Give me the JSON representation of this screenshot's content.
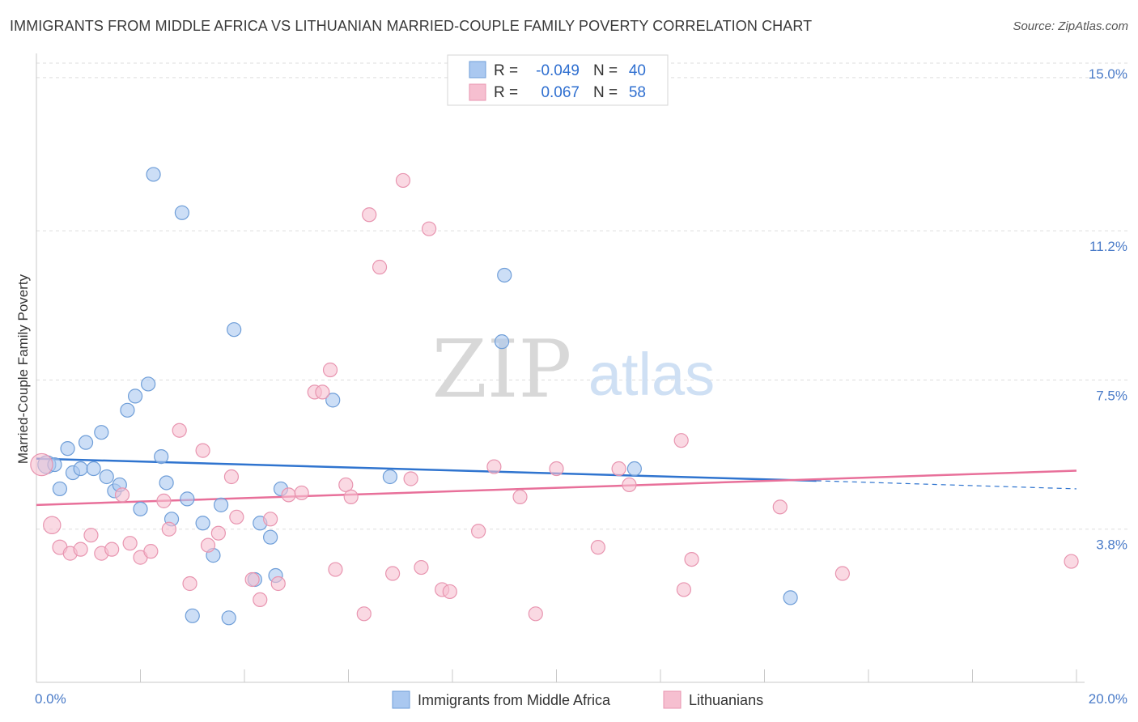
{
  "title": "IMMIGRANTS FROM MIDDLE AFRICA VS LITHUANIAN MARRIED-COUPLE FAMILY POVERTY CORRELATION CHART",
  "source": "Source: ZipAtlas.com",
  "watermark": {
    "zip": "ZIP",
    "atlas": "atlas"
  },
  "colors": {
    "blue_fill": "#aac8f0",
    "blue_stroke": "#6f9ed8",
    "blue_line": "#2f74cf",
    "pink_fill": "#f6bfd0",
    "pink_stroke": "#e895b0",
    "pink_line": "#e8709a",
    "tick_text": "#4a7bc8",
    "grid": "#dddddd"
  },
  "legend": {
    "r_label": "R =",
    "n_label": "N =",
    "rows": [
      {
        "r": "-0.049",
        "n": "40",
        "color": "blue"
      },
      {
        "r": "0.067",
        "n": "58",
        "color": "pink"
      }
    ]
  },
  "bottom_legend": [
    "Immigrants from Middle Africa",
    "Lithuanians"
  ],
  "chart_data": {
    "type": "scatter",
    "title": "IMMIGRANTS FROM MIDDLE AFRICA VS LITHUANIAN MARRIED-COUPLE FAMILY POVERTY CORRELATION CHART",
    "xlabel": "",
    "ylabel": "Married-Couple Family Poverty",
    "xlim": [
      0,
      20
    ],
    "ylim": [
      0,
      15.4
    ],
    "x_tick_labels": [
      "0.0%",
      "20.0%"
    ],
    "y_ticks": [
      3.8,
      7.5,
      11.2,
      15.0
    ],
    "y_tick_labels": [
      "3.8%",
      "7.5%",
      "11.2%",
      "15.0%"
    ],
    "grid": true,
    "legend_position": "top-center",
    "series": [
      {
        "name": "Immigrants from Middle Africa",
        "color": "blue",
        "trend": {
          "x": [
            0,
            15
          ],
          "y": [
            5.55,
            5.0
          ],
          "dashed_to": [
            20,
            4.8
          ]
        },
        "points": [
          [
            0.2,
            5.4,
            1.3
          ],
          [
            0.35,
            5.4,
            1.0
          ],
          [
            0.45,
            4.8,
            1.0
          ],
          [
            0.6,
            5.8,
            1.0
          ],
          [
            0.7,
            5.2,
            1.0
          ],
          [
            0.85,
            5.3,
            1.0
          ],
          [
            0.95,
            5.95,
            1.0
          ],
          [
            1.1,
            5.3,
            1.0
          ],
          [
            1.25,
            6.2,
            1.0
          ],
          [
            1.35,
            5.1,
            1.0
          ],
          [
            1.5,
            4.75,
            1.0
          ],
          [
            1.6,
            4.9,
            1.0
          ],
          [
            1.75,
            6.75,
            1.0
          ],
          [
            1.9,
            7.1,
            1.0
          ],
          [
            2.0,
            4.3,
            1.0
          ],
          [
            2.15,
            7.4,
            1.0
          ],
          [
            2.25,
            12.6,
            1.0
          ],
          [
            2.4,
            5.6,
            1.0
          ],
          [
            2.5,
            4.95,
            1.0
          ],
          [
            2.6,
            4.05,
            1.0
          ],
          [
            2.8,
            11.65,
            1.0
          ],
          [
            2.9,
            4.55,
            1.0
          ],
          [
            3.0,
            1.65,
            1.0
          ],
          [
            3.2,
            3.95,
            1.0
          ],
          [
            3.4,
            3.15,
            1.0
          ],
          [
            3.55,
            4.4,
            1.0
          ],
          [
            3.7,
            1.6,
            1.0
          ],
          [
            3.8,
            8.75,
            1.0
          ],
          [
            4.2,
            2.55,
            1.0
          ],
          [
            4.3,
            3.95,
            1.0
          ],
          [
            4.5,
            3.6,
            1.0
          ],
          [
            4.6,
            2.65,
            1.0
          ],
          [
            4.7,
            4.8,
            1.0
          ],
          [
            5.7,
            7.0,
            1.0
          ],
          [
            6.8,
            5.1,
            1.0
          ],
          [
            9.0,
            10.1,
            1.0
          ],
          [
            8.95,
            8.45,
            1.0
          ],
          [
            11.5,
            5.3,
            1.0
          ],
          [
            14.5,
            2.1,
            1.0
          ]
        ]
      },
      {
        "name": "Lithuanians",
        "color": "pink",
        "trend": {
          "x": [
            0,
            20
          ],
          "y": [
            4.4,
            5.25
          ]
        },
        "points": [
          [
            0.1,
            5.4,
            1.6
          ],
          [
            0.3,
            3.9,
            1.25
          ],
          [
            0.45,
            3.35,
            1.05
          ],
          [
            0.65,
            3.2,
            1.0
          ],
          [
            0.85,
            3.3,
            1.0
          ],
          [
            1.05,
            3.65,
            1.0
          ],
          [
            1.25,
            3.2,
            1.0
          ],
          [
            1.45,
            3.3,
            1.0
          ],
          [
            1.65,
            4.65,
            1.0
          ],
          [
            1.8,
            3.45,
            1.0
          ],
          [
            2.0,
            3.1,
            1.0
          ],
          [
            2.2,
            3.25,
            1.0
          ],
          [
            2.45,
            4.5,
            1.0
          ],
          [
            2.55,
            3.8,
            1.0
          ],
          [
            2.75,
            6.25,
            1.0
          ],
          [
            2.95,
            2.45,
            1.0
          ],
          [
            3.2,
            5.75,
            1.0
          ],
          [
            3.3,
            3.4,
            1.0
          ],
          [
            3.5,
            3.7,
            1.0
          ],
          [
            3.75,
            5.1,
            1.0
          ],
          [
            3.85,
            4.1,
            1.0
          ],
          [
            4.15,
            2.55,
            1.0
          ],
          [
            4.3,
            2.05,
            1.0
          ],
          [
            4.5,
            4.05,
            1.0
          ],
          [
            4.65,
            2.45,
            1.0
          ],
          [
            4.85,
            4.65,
            1.0
          ],
          [
            5.1,
            4.7,
            1.0
          ],
          [
            5.35,
            7.2,
            1.0
          ],
          [
            5.5,
            7.2,
            1.0
          ],
          [
            5.65,
            7.75,
            1.0
          ],
          [
            5.75,
            2.8,
            1.0
          ],
          [
            5.95,
            4.9,
            1.0
          ],
          [
            6.05,
            4.6,
            1.0
          ],
          [
            6.3,
            1.7,
            1.0
          ],
          [
            6.4,
            11.6,
            1.0
          ],
          [
            6.6,
            10.3,
            1.0
          ],
          [
            6.85,
            2.7,
            1.0
          ],
          [
            7.05,
            12.45,
            1.0
          ],
          [
            7.2,
            5.05,
            1.0
          ],
          [
            7.4,
            2.85,
            1.0
          ],
          [
            7.55,
            11.25,
            1.0
          ],
          [
            7.8,
            2.3,
            1.0
          ],
          [
            7.95,
            2.25,
            1.0
          ],
          [
            8.5,
            3.75,
            1.0
          ],
          [
            8.8,
            5.35,
            1.0
          ],
          [
            9.3,
            4.6,
            1.0
          ],
          [
            9.6,
            1.7,
            1.0
          ],
          [
            10.0,
            5.3,
            1.0
          ],
          [
            10.8,
            3.35,
            1.0
          ],
          [
            11.2,
            5.3,
            1.0
          ],
          [
            11.4,
            4.9,
            1.0
          ],
          [
            12.4,
            6.0,
            1.0
          ],
          [
            12.45,
            2.3,
            1.0
          ],
          [
            12.6,
            3.05,
            1.0
          ],
          [
            14.3,
            4.35,
            1.0
          ],
          [
            15.5,
            2.7,
            1.0
          ],
          [
            19.9,
            3.0,
            1.0
          ]
        ]
      }
    ]
  }
}
